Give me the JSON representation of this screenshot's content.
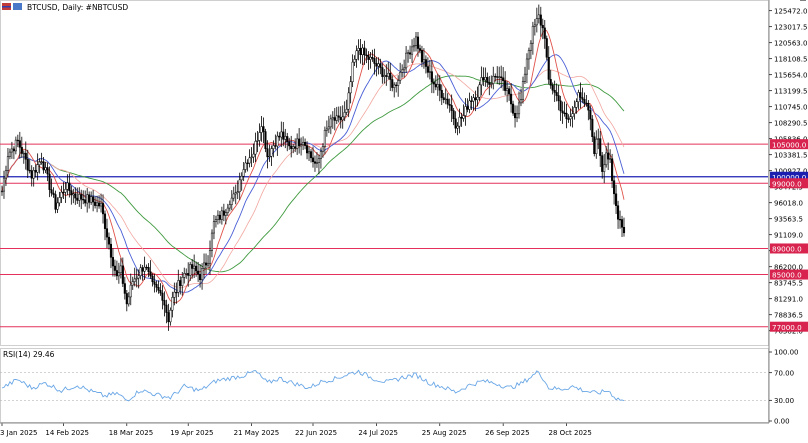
{
  "header": {
    "symbol_label": "BTCUSD, Daily:  #NBTCUSD"
  },
  "indicator": {
    "label": "RSI(14) 29.46"
  },
  "colors": {
    "candle": "#000000",
    "sma_fast": "#e0524a",
    "sma_slow_light": "#f2a7a0",
    "sma_mid": "#4a5fd6",
    "sma_200": "#3f9a3f",
    "h_line": "#e4305a",
    "h_line_blue": "#1e22b4",
    "rsi_line": "#6aa7e6",
    "price_tag_bg": "#d8234e",
    "price_tag_blue_bg": "#1b1fb0"
  },
  "chart_data": {
    "type": "candlestick",
    "symbol": "BTCUSD",
    "timeframe": "Daily",
    "price_ticks": [
      "125472.0",
      "123017.5",
      "120563.0",
      "118108.5",
      "115654.0",
      "113199.5",
      "110745.0",
      "108290.5",
      "105836.0",
      "103381.5",
      "100927.0",
      "98472.5",
      "96018.0",
      "93563.5",
      "91109.0",
      "88654.5",
      "86200.0",
      "83745.5",
      "81291.0",
      "78836.5",
      "76382.0"
    ],
    "date_ticks": [
      "3 Jan 2025",
      "14 Feb 2025",
      "18 Mar 2025",
      "19 Apr 2025",
      "21 May 2025",
      "22 Jun 2025",
      "24 Jul 2025",
      "25 Aug 2025",
      "26 Sep 2025",
      "28 Oct 2025"
    ],
    "horizontal_levels": [
      {
        "label": "105000.0",
        "value": 105000,
        "style": "red"
      },
      {
        "label": "100000.0",
        "value": 100000,
        "style": "blue"
      },
      {
        "label": "99000.0",
        "value": 99000,
        "style": "red"
      },
      {
        "label": "89000.0",
        "value": 89000,
        "style": "red"
      },
      {
        "label": "85000.0",
        "value": 85000,
        "style": "red"
      },
      {
        "label": "77000.0",
        "value": 77000,
        "style": "red"
      }
    ],
    "price_anchors": [
      [
        0,
        97800
      ],
      [
        3,
        103500
      ],
      [
        8,
        105400
      ],
      [
        15,
        100200
      ],
      [
        20,
        102800
      ],
      [
        27,
        95500
      ],
      [
        32,
        98600
      ],
      [
        37,
        97000
      ],
      [
        44,
        96500
      ],
      [
        50,
        95500
      ],
      [
        55,
        88300
      ],
      [
        58,
        84500
      ],
      [
        60,
        85600
      ],
      [
        63,
        80500
      ],
      [
        66,
        84000
      ],
      [
        72,
        86500
      ],
      [
        76,
        83200
      ],
      [
        81,
        81800
      ],
      [
        84,
        78200
      ],
      [
        86,
        81200
      ],
      [
        91,
        84800
      ],
      [
        96,
        86000
      ],
      [
        100,
        84800
      ],
      [
        104,
        87500
      ],
      [
        107,
        92800
      ],
      [
        112,
        94600
      ],
      [
        115,
        96500
      ],
      [
        118,
        97000
      ],
      [
        121,
        100800
      ],
      [
        124,
        102800
      ],
      [
        127,
        103800
      ],
      [
        131,
        108500
      ],
      [
        134,
        103200
      ],
      [
        138,
        105500
      ],
      [
        141,
        106500
      ],
      [
        145,
        104500
      ],
      [
        149,
        105200
      ],
      [
        152,
        105800
      ],
      [
        156,
        103000
      ],
      [
        159,
        101500
      ],
      [
        163,
        106500
      ],
      [
        167,
        108800
      ],
      [
        170,
        108500
      ],
      [
        174,
        109900
      ],
      [
        177,
        116800
      ],
      [
        180,
        119800
      ],
      [
        183,
        118600
      ],
      [
        187,
        117700
      ],
      [
        191,
        116400
      ],
      [
        195,
        115100
      ],
      [
        198,
        113800
      ],
      [
        202,
        116700
      ],
      [
        205,
        119000
      ],
      [
        209,
        121200
      ],
      [
        212,
        117900
      ],
      [
        216,
        115600
      ],
      [
        219,
        113900
      ],
      [
        222,
        112800
      ],
      [
        226,
        111100
      ],
      [
        229,
        108200
      ],
      [
        233,
        109300
      ],
      [
        236,
        111800
      ],
      [
        240,
        112800
      ],
      [
        243,
        115600
      ],
      [
        246,
        114400
      ],
      [
        250,
        115700
      ],
      [
        253,
        114000
      ],
      [
        256,
        112200
      ],
      [
        259,
        109500
      ],
      [
        262,
        111700
      ],
      [
        265,
        118300
      ],
      [
        268,
        122400
      ],
      [
        271,
        124500
      ],
      [
        274,
        121800
      ],
      [
        276,
        114200
      ],
      [
        279,
        113200
      ],
      [
        282,
        110700
      ],
      [
        285,
        108500
      ],
      [
        288,
        109500
      ],
      [
        291,
        113500
      ],
      [
        293,
        111200
      ],
      [
        296,
        110300
      ],
      [
        299,
        104200
      ],
      [
        301,
        106100
      ],
      [
        303,
        101200
      ],
      [
        305,
        103900
      ],
      [
        307,
        102000
      ],
      [
        308,
        98900
      ],
      [
        310,
        95500
      ],
      [
        311,
        94200
      ],
      [
        313,
        92800
      ],
      [
        314,
        91400
      ]
    ],
    "price_low": 74500,
    "price_high": 126500,
    "rsi": {
      "name": "RSI(14)",
      "last": 29.46,
      "levels": [
        30,
        70
      ],
      "ticks": [
        "100.00",
        "70.00",
        "30.00",
        "0.00"
      ],
      "anchors": [
        [
          0,
          48
        ],
        [
          8,
          60
        ],
        [
          15,
          48
        ],
        [
          22,
          55
        ],
        [
          30,
          44
        ],
        [
          38,
          52
        ],
        [
          45,
          43
        ],
        [
          52,
          36
        ],
        [
          58,
          40
        ],
        [
          63,
          30
        ],
        [
          70,
          45
        ],
        [
          78,
          38
        ],
        [
          85,
          34
        ],
        [
          92,
          50
        ],
        [
          100,
          44
        ],
        [
          108,
          58
        ],
        [
          115,
          62
        ],
        [
          122,
          66
        ],
        [
          128,
          72
        ],
        [
          134,
          55
        ],
        [
          140,
          62
        ],
        [
          148,
          54
        ],
        [
          155,
          48
        ],
        [
          162,
          58
        ],
        [
          168,
          61
        ],
        [
          175,
          68
        ],
        [
          180,
          72
        ],
        [
          187,
          62
        ],
        [
          195,
          56
        ],
        [
          202,
          63
        ],
        [
          209,
          67
        ],
        [
          216,
          55
        ],
        [
          222,
          50
        ],
        [
          229,
          42
        ],
        [
          236,
          52
        ],
        [
          243,
          58
        ],
        [
          250,
          54
        ],
        [
          256,
          48
        ],
        [
          262,
          54
        ],
        [
          268,
          66
        ],
        [
          271,
          72
        ],
        [
          276,
          48
        ],
        [
          282,
          46
        ],
        [
          288,
          50
        ],
        [
          294,
          44
        ],
        [
          300,
          40
        ],
        [
          306,
          44
        ],
        [
          310,
          33
        ],
        [
          314,
          29.46
        ]
      ]
    }
  }
}
